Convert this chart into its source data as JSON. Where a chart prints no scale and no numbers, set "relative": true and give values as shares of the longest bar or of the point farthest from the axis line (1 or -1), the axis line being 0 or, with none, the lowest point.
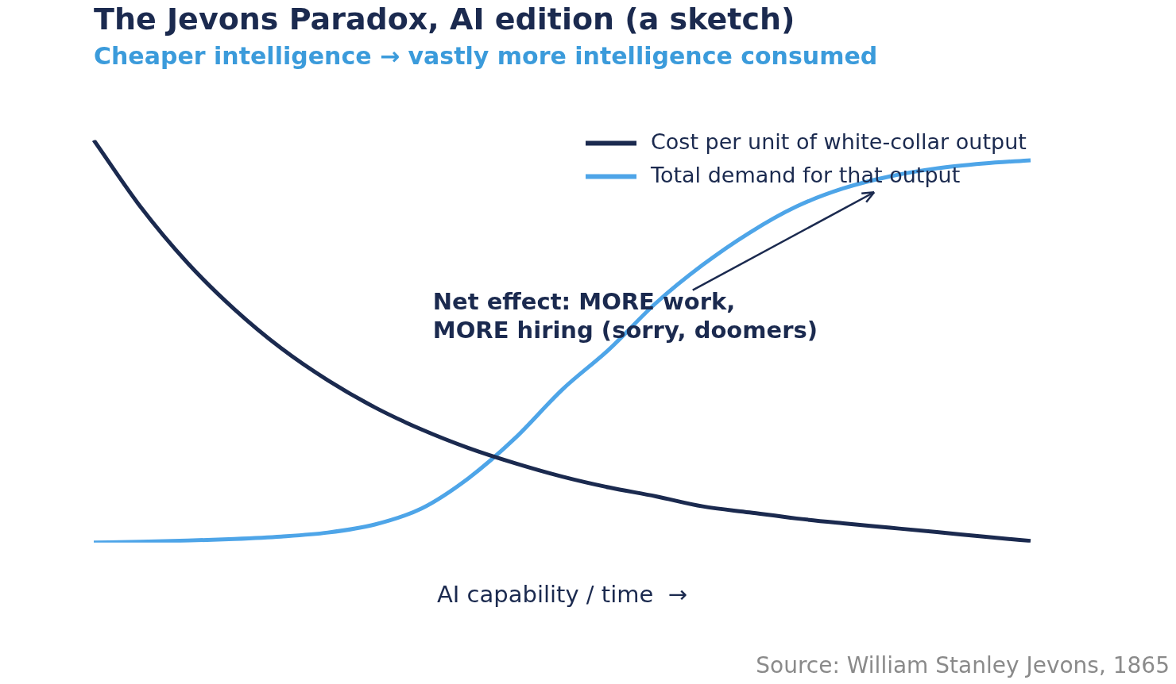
{
  "chart_data": {
    "type": "line",
    "title": "The Jevons Paradox, AI edition (a sketch)",
    "subtitle": "Cheaper intelligence → vastly more intelligence consumed",
    "xlabel": "AI capability / time  →",
    "relative": true,
    "legend": "top right",
    "grid": false,
    "marker": "none",
    "line_style": "solid",
    "categories": [
      null,
      null,
      null,
      null,
      null,
      null,
      null,
      null,
      null,
      null,
      null,
      null,
      null,
      null,
      null,
      null,
      null,
      null,
      null,
      null,
      null
    ],
    "series": [
      {
        "name": "Cost per unit of white-collar output",
        "color": "#1b2a4f",
        "values": [
          1.0,
          0.834,
          0.695,
          0.58,
          0.483,
          0.403,
          0.336,
          0.281,
          0.235,
          0.197,
          0.164,
          0.137,
          0.115,
          0.09,
          0.075,
          0.06,
          0.048,
          0.037,
          0.026,
          0.015,
          0.004
        ]
      },
      {
        "name": "Total demand for that output",
        "color": "#4ea5e8",
        "values": [
          0,
          0.002,
          0.005,
          0.009,
          0.015,
          0.025,
          0.045,
          0.085,
          0.16,
          0.26,
          0.38,
          0.48,
          0.595,
          0.69,
          0.77,
          0.835,
          0.88,
          0.91,
          0.93,
          0.942,
          0.95
        ]
      }
    ],
    "annotations": [
      "Net effect: MORE work,\nMORE hiring (sorry, doomers)",
      "Source: William Stanley Jevons, 1865"
    ]
  }
}
